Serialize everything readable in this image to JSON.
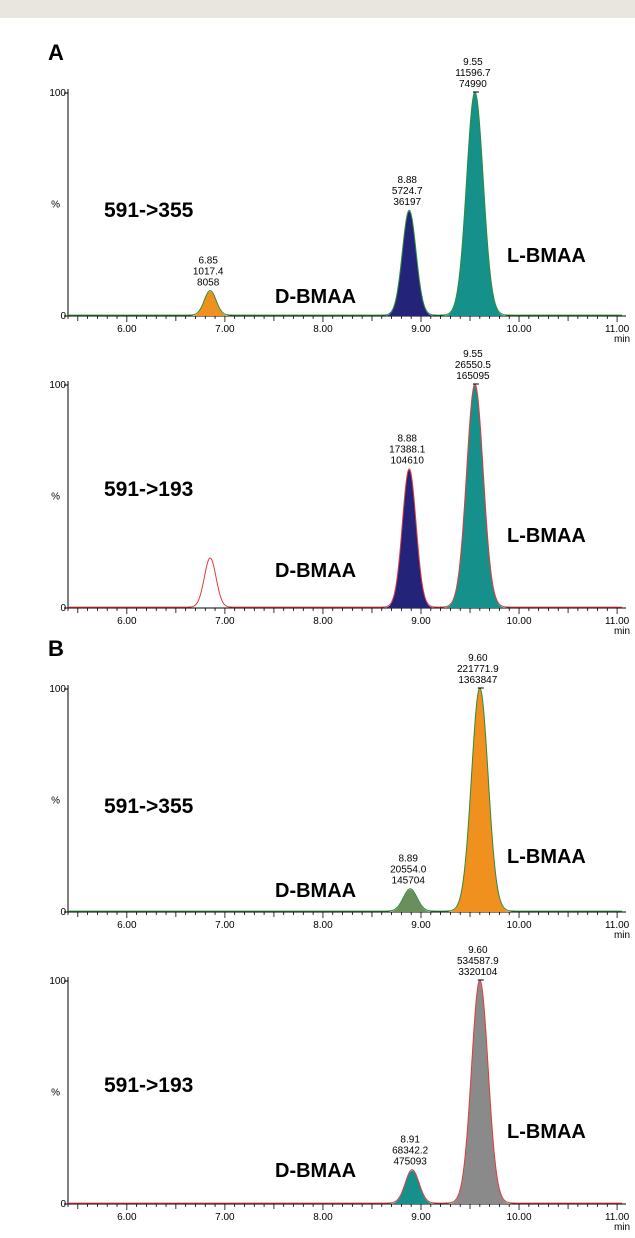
{
  "sections": [
    {
      "label": "A"
    },
    {
      "label": "B"
    }
  ],
  "chart_data": [
    {
      "type": "line",
      "transition": "591->355",
      "trace_color": "#2e8b3a",
      "ylabel": "%",
      "xunit": "min",
      "xlim": [
        5.4,
        11.05
      ],
      "ylim": [
        0,
        100
      ],
      "yticks": [
        "0",
        "100"
      ],
      "xticklabels": [
        "6.00",
        "7.00",
        "8.00",
        "9.00",
        "10.00",
        "11.00"
      ],
      "peaks": [
        {
          "rt": 6.85,
          "height": 11,
          "width": 0.06,
          "fill": "#f0901e",
          "labels": [
            "6.85",
            "1017.4",
            "8058"
          ]
        },
        {
          "rt": 8.88,
          "height": 47,
          "width": 0.07,
          "fill": "#23237a",
          "labels": [
            "8.88",
            "5724.7",
            "36197"
          ]
        },
        {
          "rt": 9.55,
          "height": 100,
          "width": 0.085,
          "fill": "#16908a",
          "labels": [
            "9.55",
            "11596.7",
            "74990"
          ]
        }
      ],
      "annotations": [
        {
          "text": "D-BMAA",
          "near_rt": 7.9
        },
        {
          "text": "L-BMAA",
          "near_rt": 10.6
        }
      ]
    },
    {
      "type": "line",
      "transition": "591->193",
      "trace_color": "#e23b3b",
      "ylabel": "%",
      "xunit": "min",
      "xlim": [
        5.4,
        11.05
      ],
      "ylim": [
        0,
        100
      ],
      "yticks": [
        "0",
        "100"
      ],
      "xticklabels": [
        "6.00",
        "7.00",
        "8.00",
        "9.00",
        "10.00",
        "11.00"
      ],
      "peaks": [
        {
          "rt": 6.85,
          "height": 22,
          "width": 0.06,
          "fill": "none",
          "labels": []
        },
        {
          "rt": 8.88,
          "height": 62,
          "width": 0.07,
          "fill": "#23237a",
          "labels": [
            "8.88",
            "17388.1",
            "104610"
          ]
        },
        {
          "rt": 9.55,
          "height": 100,
          "width": 0.085,
          "fill": "#16908a",
          "labels": [
            "9.55",
            "26550.5",
            "165095"
          ]
        }
      ],
      "annotations": [
        {
          "text": "D-BMAA",
          "near_rt": 7.9
        },
        {
          "text": "L-BMAA",
          "near_rt": 10.6
        }
      ]
    },
    {
      "type": "line",
      "transition": "591->355",
      "trace_color": "#2e8b3a",
      "ylabel": "%",
      "xunit": "min",
      "xlim": [
        5.4,
        11.05
      ],
      "ylim": [
        0,
        100
      ],
      "yticks": [
        "0",
        "100"
      ],
      "xticklabels": [
        "6.00",
        "7.00",
        "8.00",
        "9.00",
        "10.00",
        "11.00"
      ],
      "peaks": [
        {
          "rt": 8.89,
          "height": 10,
          "width": 0.07,
          "fill": "#6b8f5a",
          "labels": [
            "8.89",
            "20554.0",
            "145704"
          ]
        },
        {
          "rt": 9.6,
          "height": 100,
          "width": 0.085,
          "fill": "#f0901e",
          "labels": [
            "9.60",
            "221771.9",
            "1363847"
          ]
        }
      ],
      "annotations": [
        {
          "text": "D-BMAA",
          "near_rt": 7.9
        },
        {
          "text": "L-BMAA",
          "near_rt": 10.6
        }
      ]
    },
    {
      "type": "line",
      "transition": "591->193",
      "trace_color": "#e23b3b",
      "ylabel": "%",
      "xunit": "min",
      "xlim": [
        5.4,
        11.05
      ],
      "ylim": [
        0,
        100
      ],
      "yticks": [
        "0",
        "100"
      ],
      "xticklabels": [
        "6.00",
        "7.00",
        "8.00",
        "9.00",
        "10.00",
        "11.00"
      ],
      "peaks": [
        {
          "rt": 8.91,
          "height": 15,
          "width": 0.07,
          "fill": "#16908a",
          "labels": [
            "8.91",
            "68342.2",
            "475093"
          ]
        },
        {
          "rt": 9.6,
          "height": 100,
          "width": 0.085,
          "fill": "#8a8a8a",
          "labels": [
            "9.60",
            "534587.9",
            "3320104"
          ]
        }
      ],
      "annotations": [
        {
          "text": "D-BMAA",
          "near_rt": 7.9
        },
        {
          "text": "L-BMAA",
          "near_rt": 10.6
        }
      ]
    }
  ]
}
